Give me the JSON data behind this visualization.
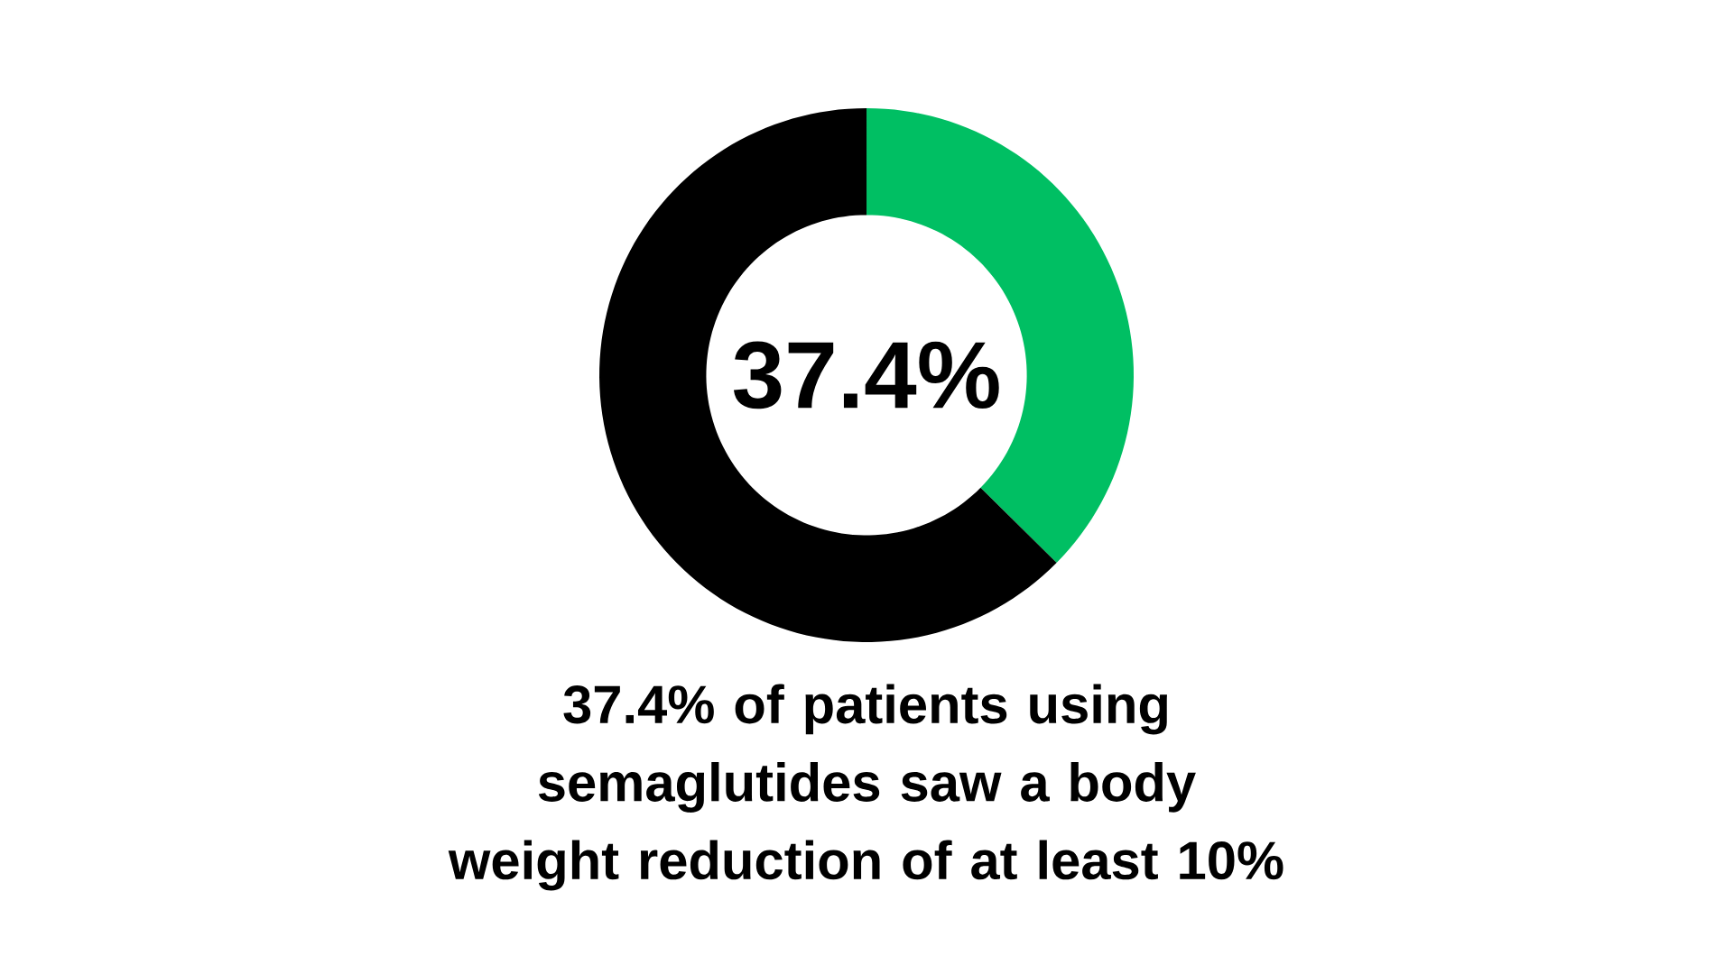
{
  "chart_data": {
    "type": "donut",
    "title": "37.4% of patients using semaglutides saw a body weight reduction of at least 10%",
    "categories": [
      null,
      null
    ],
    "values": [
      37.4,
      62.6
    ],
    "colors": [
      "#00bf63",
      "#000000"
    ],
    "annotations": [
      "37.4%"
    ]
  }
}
